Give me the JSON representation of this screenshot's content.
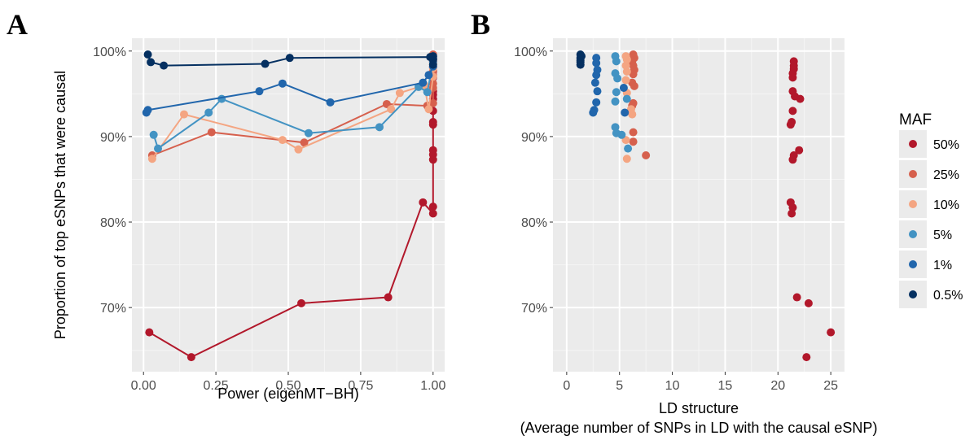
{
  "chart_data": [
    {
      "panel_label": "A",
      "type": "line",
      "xlabel": "Power (eigenMT−BH)",
      "ylabel": "Proportion of top eSNPs that were causal",
      "xlim": [
        -0.04,
        1.04
      ],
      "ylim": [
        62.5,
        101.5
      ],
      "x_ticks": [
        "0.00",
        "0.25",
        "0.50",
        "0.75",
        "1.00"
      ],
      "x_tick_values": [
        0,
        0.25,
        0.5,
        0.75,
        1.0
      ],
      "y_ticks": [
        "70%",
        "80%",
        "90%",
        "100%"
      ],
      "y_tick_values": [
        70,
        80,
        90,
        100
      ],
      "grid": true,
      "series": [
        {
          "name": "50%",
          "color": "#b2182b",
          "points": [
            [
              0.02,
              67.1
            ],
            [
              0.165,
              64.2
            ],
            [
              0.545,
              70.5
            ],
            [
              0.845,
              71.2
            ],
            [
              0.965,
              82.3
            ],
            [
              1.0,
              81.0
            ],
            [
              1.0,
              81.8
            ],
            [
              1.0,
              87.3
            ],
            [
              1.0,
              87.9
            ],
            [
              1.0,
              88.4
            ],
            [
              1.0,
              91.4
            ],
            [
              1.0,
              91.7
            ],
            [
              1.0,
              93.0
            ],
            [
              1.0,
              94.4
            ],
            [
              1.0,
              94.9
            ],
            [
              1.0,
              95.3
            ],
            [
              1.0,
              96.9
            ],
            [
              1.0,
              97.6
            ],
            [
              1.0,
              98.1
            ],
            [
              1.0,
              98.8
            ]
          ]
        },
        {
          "name": "25%",
          "color": "#d6604d",
          "points": [
            [
              0.03,
              87.8
            ],
            [
              0.235,
              90.5
            ],
            [
              0.555,
              89.3
            ],
            [
              0.84,
              93.8
            ],
            [
              0.98,
              93.6
            ],
            [
              1.0,
              93.9
            ],
            [
              1.0,
              95.7
            ],
            [
              1.0,
              96.2
            ],
            [
              1.0,
              97.2
            ],
            [
              1.0,
              97.7
            ],
            [
              1.0,
              98.6
            ],
            [
              1.0,
              99.2
            ],
            [
              1.0,
              99.6
            ]
          ]
        },
        {
          "name": "10%",
          "color": "#f4a582",
          "points": [
            [
              0.03,
              87.4
            ],
            [
              0.14,
              92.6
            ],
            [
              0.48,
              89.6
            ],
            [
              0.535,
              88.5
            ],
            [
              0.855,
              93.2
            ],
            [
              0.885,
              95.1
            ],
            [
              0.97,
              96.0
            ],
            [
              0.985,
              93.2
            ],
            [
              1.0,
              97.0
            ],
            [
              1.0,
              98.0
            ],
            [
              1.0,
              99.0
            ],
            [
              1.0,
              99.4
            ]
          ]
        },
        {
          "name": "5%",
          "color": "#4393c3",
          "points": [
            [
              0.035,
              90.2
            ],
            [
              0.05,
              88.6
            ],
            [
              0.225,
              92.8
            ],
            [
              0.27,
              94.4
            ],
            [
              0.57,
              90.4
            ],
            [
              0.815,
              91.1
            ],
            [
              0.95,
              95.8
            ],
            [
              0.98,
              95.2
            ],
            [
              1.0,
              98.7
            ],
            [
              1.0,
              99.4
            ]
          ]
        },
        {
          "name": "1%",
          "color": "#2166ac",
          "points": [
            [
              0.01,
              92.8
            ],
            [
              0.015,
              93.1
            ],
            [
              0.4,
              95.3
            ],
            [
              0.48,
              96.2
            ],
            [
              0.645,
              94.0
            ],
            [
              0.965,
              96.3
            ],
            [
              0.985,
              97.2
            ],
            [
              1.0,
              98.2
            ],
            [
              1.0,
              99.0
            ],
            [
              1.0,
              99.2
            ]
          ]
        },
        {
          "name": "0.5%",
          "color": "#053061",
          "points": [
            [
              0.015,
              99.6
            ],
            [
              0.025,
              98.7
            ],
            [
              0.07,
              98.3
            ],
            [
              0.42,
              98.5
            ],
            [
              0.505,
              99.2
            ],
            [
              0.99,
              99.3
            ],
            [
              1.0,
              98.4
            ],
            [
              1.0,
              99.0
            ],
            [
              1.0,
              99.4
            ]
          ]
        }
      ]
    },
    {
      "panel_label": "B",
      "type": "scatter",
      "xlabel": "LD structure",
      "xlabel_line2": "(Average number of SNPs in LD with the causal eSNP)",
      "ylabel": "",
      "xlim": [
        -1.3,
        26.3
      ],
      "ylim": [
        62.5,
        101.5
      ],
      "x_ticks": [
        "0",
        "5",
        "10",
        "15",
        "20",
        "25"
      ],
      "x_tick_values": [
        0,
        5,
        10,
        15,
        20,
        25
      ],
      "y_ticks": [
        "70%",
        "80%",
        "90%",
        "100%"
      ],
      "y_tick_values": [
        70,
        80,
        90,
        100
      ],
      "grid": true,
      "legend": {
        "title": "MAF",
        "position": "right"
      },
      "series": [
        {
          "name": "50%",
          "color": "#b2182b",
          "points": [
            [
              21.5,
              98.8
            ],
            [
              21.5,
              98.3
            ],
            [
              21.5,
              97.9
            ],
            [
              21.4,
              97.4
            ],
            [
              21.4,
              96.9
            ],
            [
              21.4,
              95.3
            ],
            [
              21.6,
              94.7
            ],
            [
              22.1,
              94.4
            ],
            [
              21.4,
              93.0
            ],
            [
              21.3,
              91.7
            ],
            [
              21.2,
              91.4
            ],
            [
              22.0,
              88.4
            ],
            [
              21.5,
              87.8
            ],
            [
              21.4,
              87.3
            ],
            [
              21.2,
              82.3
            ],
            [
              21.4,
              81.7
            ],
            [
              21.3,
              81.0
            ],
            [
              21.8,
              71.2
            ],
            [
              22.9,
              70.5
            ],
            [
              25.0,
              67.1
            ],
            [
              22.7,
              64.2
            ]
          ]
        },
        {
          "name": "25%",
          "color": "#d6604d",
          "points": [
            [
              6.3,
              99.6
            ],
            [
              6.4,
              99.2
            ],
            [
              6.2,
              98.8
            ],
            [
              6.3,
              98.3
            ],
            [
              6.4,
              97.8
            ],
            [
              6.3,
              97.3
            ],
            [
              6.2,
              96.3
            ],
            [
              6.4,
              95.9
            ],
            [
              6.3,
              93.9
            ],
            [
              6.2,
              93.6
            ],
            [
              6.3,
              90.5
            ],
            [
              6.3,
              89.4
            ],
            [
              7.5,
              87.8
            ]
          ]
        },
        {
          "name": "10%",
          "color": "#f4a582",
          "points": [
            [
              5.6,
              99.4
            ],
            [
              5.7,
              99.0
            ],
            [
              5.6,
              98.3
            ],
            [
              5.7,
              97.6
            ],
            [
              5.6,
              96.6
            ],
            [
              5.7,
              95.1
            ],
            [
              6.1,
              93.2
            ],
            [
              6.2,
              92.6
            ],
            [
              5.6,
              89.6
            ],
            [
              5.7,
              87.4
            ]
          ]
        },
        {
          "name": "5%",
          "color": "#4393c3",
          "points": [
            [
              4.6,
              99.4
            ],
            [
              4.7,
              98.8
            ],
            [
              4.6,
              97.4
            ],
            [
              4.8,
              96.8
            ],
            [
              4.7,
              95.2
            ],
            [
              5.7,
              94.4
            ],
            [
              4.6,
              94.1
            ],
            [
              4.6,
              91.1
            ],
            [
              4.7,
              90.4
            ],
            [
              5.2,
              90.2
            ],
            [
              5.8,
              88.6
            ]
          ]
        },
        {
          "name": "1%",
          "color": "#2166ac",
          "points": [
            [
              2.8,
              99.2
            ],
            [
              2.8,
              98.6
            ],
            [
              2.9,
              97.8
            ],
            [
              2.8,
              97.2
            ],
            [
              2.7,
              96.3
            ],
            [
              2.9,
              95.3
            ],
            [
              2.8,
              94.0
            ],
            [
              2.6,
              93.1
            ],
            [
              2.5,
              92.8
            ],
            [
              5.4,
              95.7
            ],
            [
              5.5,
              92.8
            ]
          ]
        },
        {
          "name": "0.5%",
          "color": "#053061",
          "points": [
            [
              1.3,
              99.6
            ],
            [
              1.3,
              99.2
            ],
            [
              1.3,
              98.9
            ],
            [
              1.3,
              98.7
            ],
            [
              1.3,
              98.4
            ],
            [
              1.4,
              99.4
            ]
          ]
        }
      ]
    }
  ]
}
